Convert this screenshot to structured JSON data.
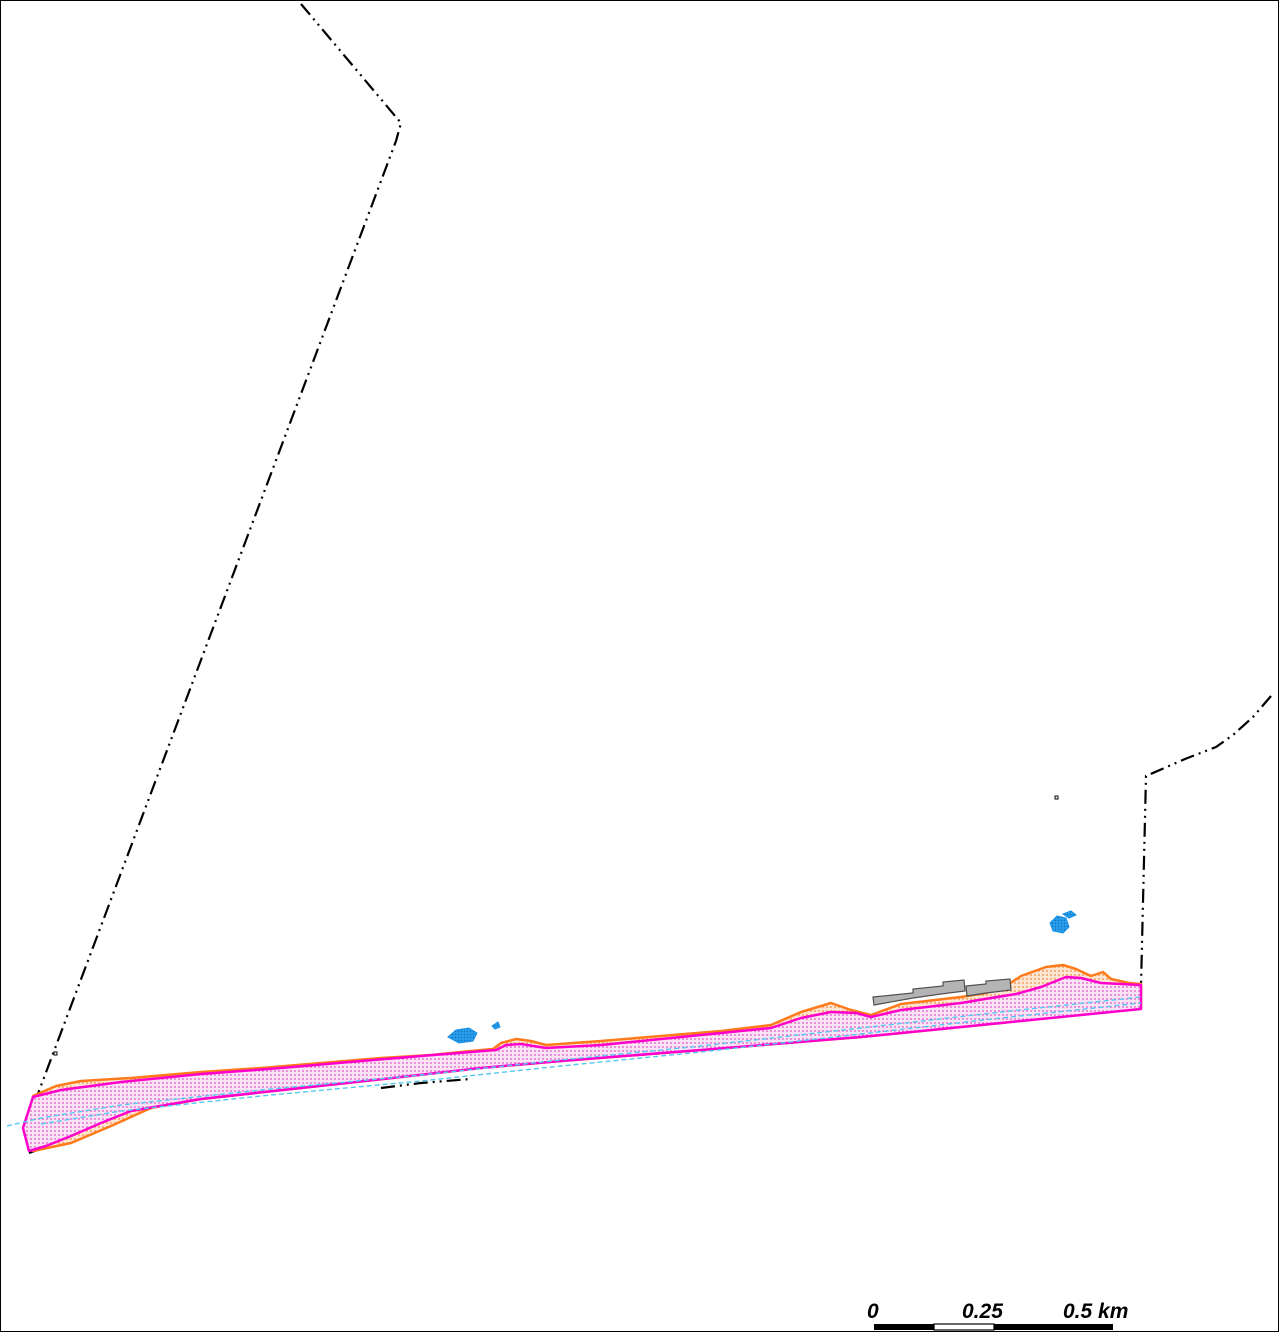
{
  "map": {
    "scale_bar": {
      "labels": [
        "0",
        "0.25",
        "0.5 km"
      ],
      "unit": "km"
    },
    "colors": {
      "boundary": "#000000",
      "flood_zone_outline": "#ff00cc",
      "flood_zone_fill": "#f7c6ec",
      "flood_extent_outline": "#ff7a1a",
      "flood_extent_fill": "#f9c9a3",
      "watercourse": "#55c8f0",
      "water_body": "#1a90e6",
      "building": "#b4b4b4"
    },
    "layers": [
      "administrative-boundary",
      "flood-extent",
      "flood-zone",
      "watercourse",
      "water-bodies",
      "buildings"
    ]
  }
}
